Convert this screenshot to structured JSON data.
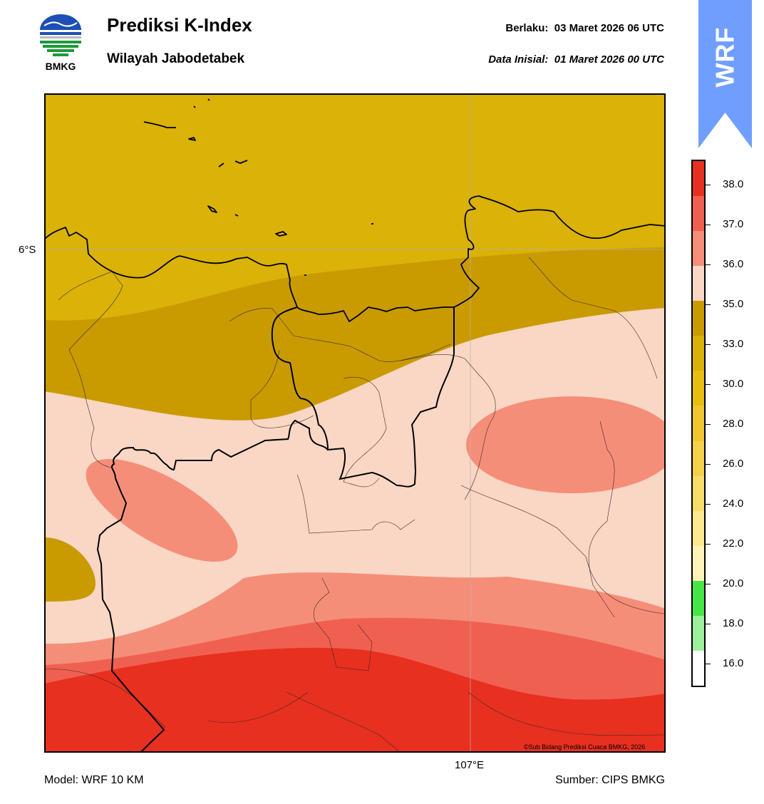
{
  "header": {
    "title": "Prediksi K-Index",
    "subtitle": "Wilayah Jabodetabek",
    "valid_label": "Berlaku:",
    "valid_value": "03 Maret 2026 06 UTC",
    "init_label": "Data Inisial:",
    "init_value": "01 Maret 2026 00 UTC"
  },
  "logo": {
    "text": "BMKG",
    "icon": "bmkg-logo"
  },
  "banner": {
    "text": "WRF",
    "color": "#6f9eff"
  },
  "map": {
    "lat_label": "6°S",
    "lon_label": "107°E",
    "copyright": "©Sub Bidang Prediksi Cuaca BMKG, 2026"
  },
  "footer": {
    "model": "Model: WRF 10 KM",
    "source": "Sumber: CIPS BMKG"
  },
  "colorbar": {
    "labels": [
      "38.0",
      "37.0",
      "36.0",
      "35.0",
      "33.0",
      "30.0",
      "28.0",
      "26.0",
      "24.0",
      "22.0",
      "20.0",
      "18.0",
      "16.0"
    ],
    "colors": [
      "#e83020",
      "#f06050",
      "#f58e78",
      "#fad6c5",
      "#c99b00",
      "#dab208",
      "#e8be10",
      "#f0c530",
      "#f5d04a",
      "#f8dc6a",
      "#fbe88e",
      "#fdf3b6",
      "#46e646",
      "#9cf09c",
      "#ffffff"
    ]
  },
  "chart_data": {
    "type": "contour-map",
    "variable": "K-Index",
    "levels": [
      16.0,
      18.0,
      20.0,
      22.0,
      24.0,
      26.0,
      28.0,
      30.0,
      33.0,
      35.0,
      36.0,
      37.0,
      38.0
    ]
  }
}
